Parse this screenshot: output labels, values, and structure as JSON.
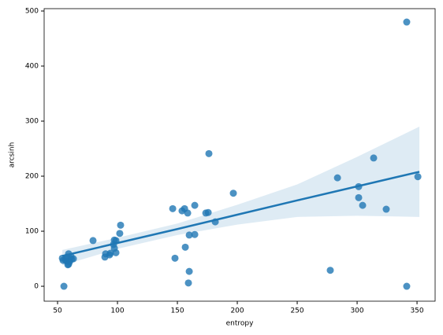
{
  "chart_data": {
    "type": "regplot",
    "x_label": "entropy",
    "y_label": "arcsinh",
    "color": "#1f77b4",
    "xlim": [
      38.8,
      365.1
    ],
    "ylim": [
      -27.1,
      504.3
    ],
    "xticks": [
      50,
      100,
      150,
      200,
      250,
      300,
      350
    ],
    "yticks": [
      0,
      100,
      200,
      300,
      400,
      500
    ],
    "points": {
      "x": [
        341.4,
        55.3,
        341.4,
        176.3,
        313.8,
        283.6,
        350.7,
        301.3,
        301.3,
        304.6,
        324.3,
        196.7,
        164.5,
        146.1,
        156,
        153.9,
        158.6,
        173.7,
        175.7,
        181.6,
        102.6,
        101.9,
        79.6,
        97.4,
        98.7,
        96.7,
        97.4,
        98.7,
        94.1,
        90.1,
        89.5,
        93.4,
        159.9,
        164.5,
        156.6,
        148,
        159.9,
        159.2,
        277.6,
        54,
        56.6,
        59.2,
        61.8,
        58.6,
        59.9,
        63.2,
        54.6,
        57.9,
        61.2,
        57.2,
        59.2
      ],
      "values": [
        480,
        0,
        0,
        241,
        233,
        197,
        199,
        181,
        161,
        147,
        140,
        169,
        147,
        141,
        141,
        137,
        133,
        133,
        134,
        117,
        111,
        96,
        83,
        84,
        83,
        76,
        69,
        61,
        60,
        59,
        53,
        57,
        93,
        94,
        71,
        51,
        27,
        6,
        29,
        51,
        49,
        59,
        49,
        39,
        44,
        50,
        47,
        53,
        54,
        46,
        40
      ]
    },
    "fit": {
      "x": [
        54,
        100,
        150,
        200,
        250,
        300,
        352
      ],
      "values": [
        55,
        78.6,
        104,
        130,
        156,
        181.5,
        208
      ]
    },
    "ci": {
      "x": [
        54,
        100,
        150,
        200,
        250,
        300,
        352
      ],
      "lower": [
        38,
        68,
        93,
        112,
        126,
        128,
        126
      ],
      "upper": [
        66,
        88,
        114,
        148,
        185,
        235,
        290
      ]
    }
  }
}
